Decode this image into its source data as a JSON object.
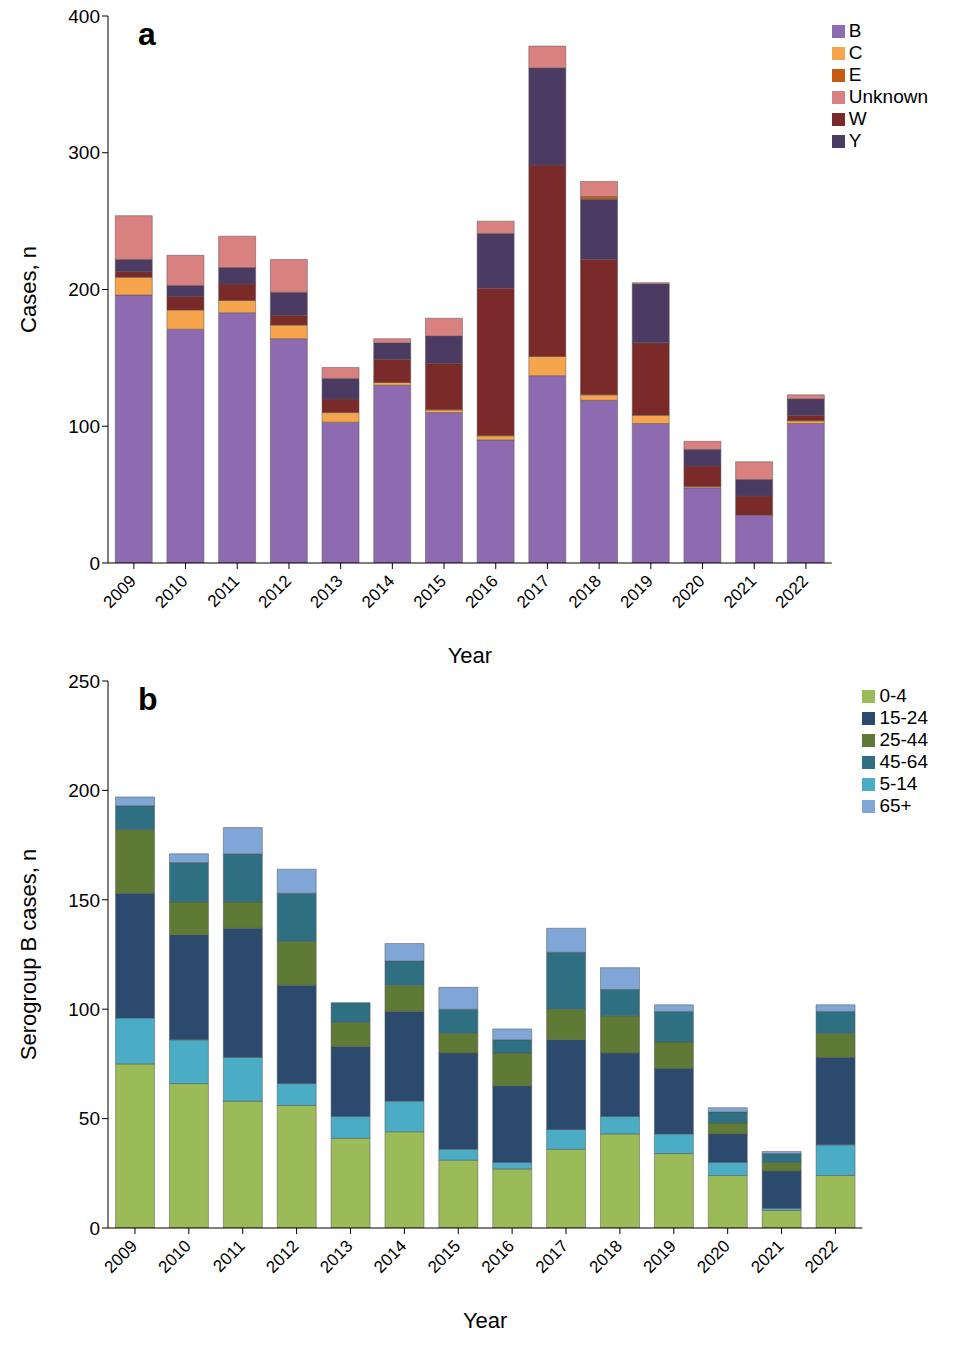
{
  "chart_data": [
    {
      "type": "bar",
      "title": "a",
      "x_label": "Year",
      "y_label": "Cases, n",
      "stacked": true,
      "grid": false,
      "legend": "upper right",
      "categories": [
        "2009",
        "2010",
        "2011",
        "2012",
        "2013",
        "2014",
        "2015",
        "2016",
        "2017",
        "2018",
        "2019",
        "2020",
        "2021",
        "2022"
      ],
      "ylim": [
        0,
        400
      ],
      "yticks": [
        0,
        100,
        200,
        300,
        400
      ],
      "series": [
        {
          "name": "B",
          "color": "#8e6bb0",
          "values": [
            196,
            171,
            183,
            164,
            103,
            130,
            110,
            90,
            137,
            119,
            102,
            55,
            35,
            102
          ]
        },
        {
          "name": "C",
          "color": "#f6a54c",
          "values": [
            13,
            14,
            9,
            10,
            7,
            2,
            2,
            3,
            14,
            4,
            6,
            1,
            0,
            2
          ]
        },
        {
          "name": "W",
          "color": "#7b2a2a",
          "values": [
            4,
            10,
            12,
            7,
            10,
            17,
            34,
            108,
            140,
            99,
            53,
            15,
            14,
            4
          ]
        },
        {
          "name": "Y",
          "color": "#4b3a62",
          "values": [
            9,
            8,
            12,
            17,
            15,
            12,
            20,
            40,
            71,
            44,
            43,
            12,
            12,
            12
          ]
        },
        {
          "name": "E",
          "color": "#c55a11",
          "values": [
            0,
            0,
            0,
            0,
            0,
            0,
            0,
            0,
            0,
            2,
            0,
            0,
            0,
            0
          ]
        },
        {
          "name": "Unknown",
          "color": "#d98080",
          "values": [
            32,
            22,
            23,
            24,
            8,
            3,
            13,
            9,
            16,
            11,
            1,
            6,
            13,
            3
          ]
        }
      ]
    },
    {
      "type": "bar",
      "title": "b",
      "x_label": "Year",
      "y_label": "Serogroup B cases, n",
      "stacked": true,
      "grid": false,
      "legend": "upper right",
      "categories": [
        "2009",
        "2010",
        "2011",
        "2012",
        "2013",
        "2014",
        "2015",
        "2016",
        "2017",
        "2018",
        "2019",
        "2020",
        "2021",
        "2022"
      ],
      "ylim": [
        0,
        250
      ],
      "yticks": [
        0,
        50,
        100,
        150,
        200,
        250
      ],
      "series": [
        {
          "name": "0-4",
          "color": "#9bbb59",
          "values": [
            75,
            66,
            58,
            56,
            41,
            44,
            31,
            27,
            36,
            43,
            34,
            24,
            8,
            24
          ]
        },
        {
          "name": "5-14",
          "color": "#4bacc6",
          "values": [
            21,
            20,
            20,
            10,
            10,
            14,
            5,
            3,
            9,
            8,
            9,
            6,
            1,
            14
          ]
        },
        {
          "name": "15-24",
          "color": "#2c4a6e",
          "values": [
            57,
            48,
            59,
            45,
            32,
            41,
            44,
            35,
            41,
            29,
            30,
            13,
            17,
            40
          ]
        },
        {
          "name": "25-44",
          "color": "#5f7a34",
          "values": [
            29,
            15,
            12,
            20,
            11,
            12,
            9,
            15,
            14,
            17,
            12,
            5,
            4,
            11
          ]
        },
        {
          "name": "45-64",
          "color": "#2e7082",
          "values": [
            11,
            18,
            22,
            22,
            9,
            11,
            11,
            6,
            26,
            12,
            14,
            5,
            4,
            10
          ]
        },
        {
          "name": "65+",
          "color": "#7fa6d6",
          "values": [
            4,
            4,
            12,
            11,
            0,
            8,
            10,
            5,
            11,
            10,
            3,
            2,
            1,
            3
          ]
        }
      ]
    }
  ]
}
